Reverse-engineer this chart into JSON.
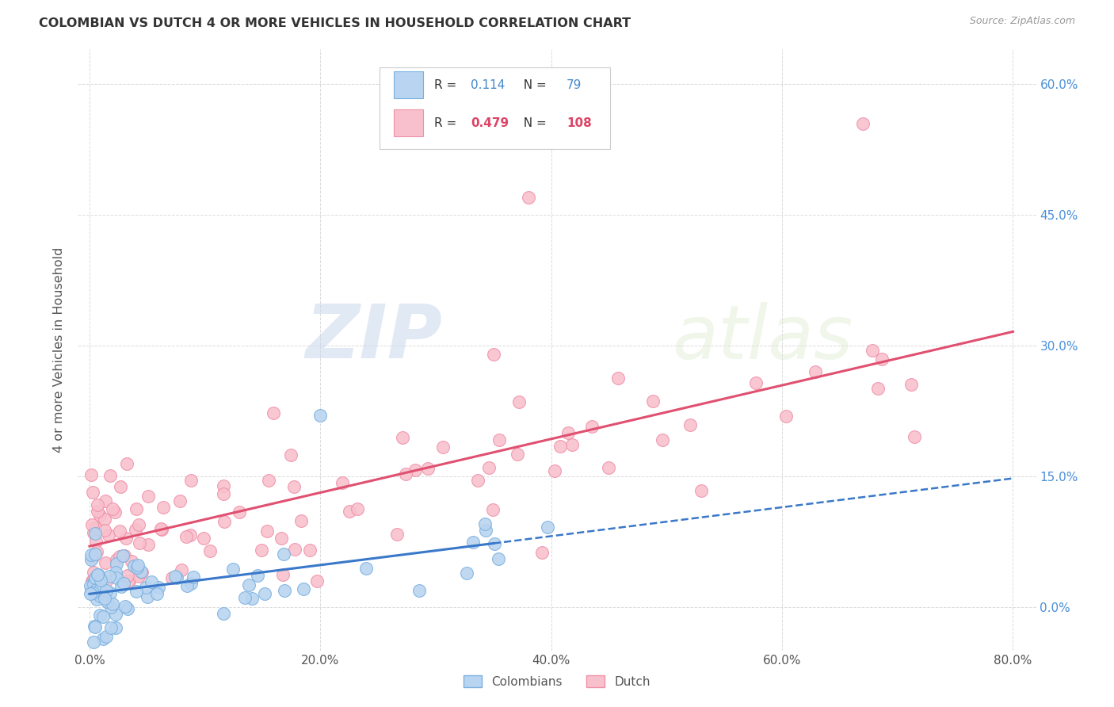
{
  "title": "COLOMBIAN VS DUTCH 4 OR MORE VEHICLES IN HOUSEHOLD CORRELATION CHART",
  "source": "Source: ZipAtlas.com",
  "ylabel_label": "4 or more Vehicles in Household",
  "colombian_color_edge": "#7ab0e0",
  "colombian_color_face": "#b8d4f0",
  "dutch_color_edge": "#f090a8",
  "dutch_color_face": "#f8c0cc",
  "trend_colombian_color": "#3a78c9",
  "trend_dutch_color": "#e05070",
  "R_colombian": 0.114,
  "N_colombian": 79,
  "R_dutch": 0.479,
  "N_dutch": 108,
  "background_color": "#ffffff",
  "grid_color": "#cccccc",
  "title_color": "#333333",
  "right_tick_color": "#4a90d9",
  "legend_text_color_col": "#4488cc",
  "legend_text_color_dutch": "#dd4466",
  "watermark_zip": "ZIP",
  "watermark_atlas": "atlas",
  "xmax": 80,
  "ymax": 60
}
